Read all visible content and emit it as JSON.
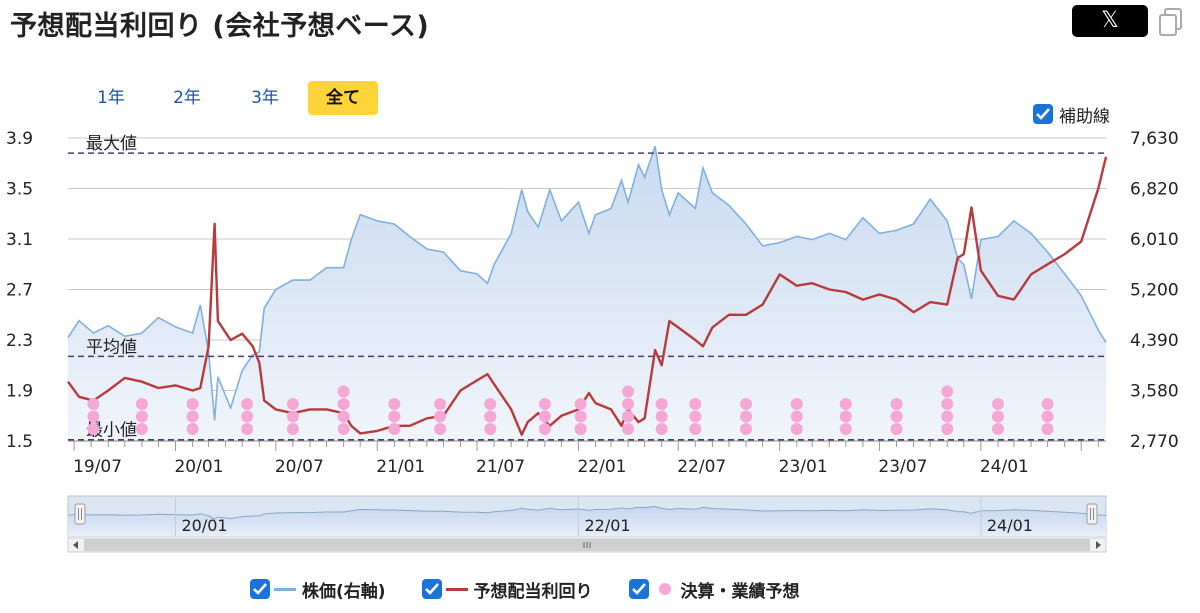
{
  "page": {
    "title": "予想配当利回り (会社予想ベース)",
    "share_x_label": "𝕏",
    "tabs": [
      {
        "label": "1年",
        "active": false
      },
      {
        "label": "2年",
        "active": false
      },
      {
        "label": "3年",
        "active": false
      },
      {
        "label": "全て",
        "active": true
      }
    ],
    "aux_lines_label": "補助線",
    "aux_lines_checked": true
  },
  "colors": {
    "stock": "#7fb0e0",
    "yield": "#b83a3a",
    "events": "#f5a8d6",
    "refline": "#4b3a78",
    "accent": "#ffd43b",
    "checkbox": "#1a73d9"
  },
  "chart_data": {
    "type": "line",
    "left_axis": {
      "ticks": [
        "3.9",
        "3.5",
        "3.1",
        "2.7",
        "2.3",
        "1.9",
        "1.5"
      ],
      "ylim": [
        1.5,
        3.9
      ]
    },
    "right_axis": {
      "ticks": [
        "7,630",
        "6,820",
        "6,010",
        "5,200",
        "4,390",
        "3,580",
        "2,770"
      ],
      "ylim": [
        2770,
        7630
      ]
    },
    "x_ticks": [
      "19/07",
      "20/01",
      "20/07",
      "21/01",
      "21/07",
      "22/01",
      "22/07",
      "23/01",
      "23/07",
      "24/01"
    ],
    "x_range": [
      "2019-06-20",
      "2024-08-15"
    ],
    "reference_lines": [
      {
        "label": "最大値",
        "value": 3.78
      },
      {
        "label": "平均値",
        "value": 2.17
      },
      {
        "label": "最小値",
        "value": 1.51
      }
    ],
    "series": [
      {
        "name": "株価(右軸)",
        "axis": "right",
        "style": "area",
        "points": [
          [
            "2019-06-20",
            4430
          ],
          [
            "2019-07-10",
            4700
          ],
          [
            "2019-08-05",
            4500
          ],
          [
            "2019-09-01",
            4620
          ],
          [
            "2019-10-01",
            4450
          ],
          [
            "2019-11-01",
            4500
          ],
          [
            "2019-12-01",
            4750
          ],
          [
            "2020-01-01",
            4600
          ],
          [
            "2020-02-01",
            4500
          ],
          [
            "2020-02-15",
            4950
          ],
          [
            "2020-03-01",
            4200
          ],
          [
            "2020-03-12",
            3100
          ],
          [
            "2020-03-18",
            3800
          ],
          [
            "2020-04-10",
            3300
          ],
          [
            "2020-05-01",
            3900
          ],
          [
            "2020-05-20",
            4150
          ],
          [
            "2020-06-01",
            4200
          ],
          [
            "2020-06-10",
            4900
          ],
          [
            "2020-07-01",
            5200
          ],
          [
            "2020-08-01",
            5350
          ],
          [
            "2020-09-01",
            5350
          ],
          [
            "2020-10-01",
            5550
          ],
          [
            "2020-11-01",
            5550
          ],
          [
            "2020-11-15",
            6000
          ],
          [
            "2020-12-01",
            6400
          ],
          [
            "2021-01-01",
            6300
          ],
          [
            "2021-02-01",
            6250
          ],
          [
            "2021-03-01",
            6050
          ],
          [
            "2021-04-01",
            5850
          ],
          [
            "2021-05-01",
            5800
          ],
          [
            "2021-06-01",
            5500
          ],
          [
            "2021-07-01",
            5450
          ],
          [
            "2021-07-20",
            5300
          ],
          [
            "2021-08-01",
            5600
          ],
          [
            "2021-09-01",
            6100
          ],
          [
            "2021-09-20",
            6800
          ],
          [
            "2021-10-01",
            6450
          ],
          [
            "2021-10-20",
            6200
          ],
          [
            "2021-11-10",
            6800
          ],
          [
            "2021-12-01",
            6300
          ],
          [
            "2022-01-01",
            6600
          ],
          [
            "2022-01-20",
            6100
          ],
          [
            "2022-02-01",
            6400
          ],
          [
            "2022-03-01",
            6500
          ],
          [
            "2022-03-20",
            6950
          ],
          [
            "2022-04-01",
            6600
          ],
          [
            "2022-04-20",
            7200
          ],
          [
            "2022-05-01",
            7000
          ],
          [
            "2022-05-20",
            7500
          ],
          [
            "2022-06-01",
            6800
          ],
          [
            "2022-06-15",
            6400
          ],
          [
            "2022-07-01",
            6750
          ],
          [
            "2022-08-01",
            6500
          ],
          [
            "2022-08-15",
            7150
          ],
          [
            "2022-09-01",
            6750
          ],
          [
            "2022-10-01",
            6550
          ],
          [
            "2022-11-01",
            6250
          ],
          [
            "2022-12-01",
            5900
          ],
          [
            "2023-01-01",
            5950
          ],
          [
            "2023-02-01",
            6050
          ],
          [
            "2023-03-01",
            6000
          ],
          [
            "2023-04-01",
            6100
          ],
          [
            "2023-05-01",
            6000
          ],
          [
            "2023-06-01",
            6350
          ],
          [
            "2023-07-01",
            6100
          ],
          [
            "2023-08-01",
            6150
          ],
          [
            "2023-09-01",
            6250
          ],
          [
            "2023-10-01",
            6650
          ],
          [
            "2023-11-01",
            6300
          ],
          [
            "2023-11-20",
            5700
          ],
          [
            "2023-12-01",
            5600
          ],
          [
            "2023-12-15",
            5050
          ],
          [
            "2024-01-01",
            6000
          ],
          [
            "2024-02-01",
            6050
          ],
          [
            "2024-03-01",
            6300
          ],
          [
            "2024-04-01",
            6100
          ],
          [
            "2024-05-01",
            5800
          ],
          [
            "2024-06-01",
            5450
          ],
          [
            "2024-07-01",
            5100
          ],
          [
            "2024-08-01",
            4550
          ],
          [
            "2024-08-15",
            4350
          ]
        ]
      },
      {
        "name": "予想配当利回り",
        "axis": "left",
        "style": "line",
        "points": [
          [
            "2019-06-20",
            1.97
          ],
          [
            "2019-07-10",
            1.85
          ],
          [
            "2019-08-05",
            1.82
          ],
          [
            "2019-09-01",
            1.9
          ],
          [
            "2019-10-01",
            2.0
          ],
          [
            "2019-11-01",
            1.97
          ],
          [
            "2019-12-01",
            1.92
          ],
          [
            "2020-01-01",
            1.94
          ],
          [
            "2020-02-01",
            1.9
          ],
          [
            "2020-02-15",
            1.92
          ],
          [
            "2020-03-01",
            2.25
          ],
          [
            "2020-03-12",
            3.22
          ],
          [
            "2020-03-18",
            2.45
          ],
          [
            "2020-04-10",
            2.3
          ],
          [
            "2020-05-01",
            2.35
          ],
          [
            "2020-05-20",
            2.25
          ],
          [
            "2020-06-01",
            2.12
          ],
          [
            "2020-06-10",
            1.82
          ],
          [
            "2020-07-01",
            1.75
          ],
          [
            "2020-08-01",
            1.72
          ],
          [
            "2020-09-01",
            1.75
          ],
          [
            "2020-10-01",
            1.75
          ],
          [
            "2020-11-01",
            1.72
          ],
          [
            "2020-11-15",
            1.62
          ],
          [
            "2020-12-01",
            1.56
          ],
          [
            "2021-01-01",
            1.58
          ],
          [
            "2021-02-01",
            1.62
          ],
          [
            "2021-03-01",
            1.62
          ],
          [
            "2021-04-01",
            1.68
          ],
          [
            "2021-05-01",
            1.7
          ],
          [
            "2021-06-01",
            1.9
          ],
          [
            "2021-07-01",
            1.98
          ],
          [
            "2021-07-20",
            2.03
          ],
          [
            "2021-08-01",
            1.95
          ],
          [
            "2021-09-01",
            1.75
          ],
          [
            "2021-09-20",
            1.55
          ],
          [
            "2021-10-01",
            1.65
          ],
          [
            "2021-10-20",
            1.72
          ],
          [
            "2021-11-10",
            1.62
          ],
          [
            "2021-12-01",
            1.7
          ],
          [
            "2022-01-01",
            1.75
          ],
          [
            "2022-01-20",
            1.88
          ],
          [
            "2022-02-01",
            1.8
          ],
          [
            "2022-03-01",
            1.75
          ],
          [
            "2022-03-20",
            1.62
          ],
          [
            "2022-04-01",
            1.75
          ],
          [
            "2022-04-20",
            1.65
          ],
          [
            "2022-05-01",
            1.68
          ],
          [
            "2022-05-20",
            2.22
          ],
          [
            "2022-06-01",
            2.1
          ],
          [
            "2022-06-15",
            2.45
          ],
          [
            "2022-07-01",
            2.4
          ],
          [
            "2022-08-01",
            2.3
          ],
          [
            "2022-08-15",
            2.25
          ],
          [
            "2022-09-01",
            2.4
          ],
          [
            "2022-10-01",
            2.5
          ],
          [
            "2022-11-01",
            2.5
          ],
          [
            "2022-12-01",
            2.58
          ],
          [
            "2023-01-01",
            2.82
          ],
          [
            "2023-02-01",
            2.73
          ],
          [
            "2023-03-01",
            2.75
          ],
          [
            "2023-04-01",
            2.7
          ],
          [
            "2023-05-01",
            2.68
          ],
          [
            "2023-06-01",
            2.62
          ],
          [
            "2023-07-01",
            2.66
          ],
          [
            "2023-08-01",
            2.62
          ],
          [
            "2023-09-01",
            2.52
          ],
          [
            "2023-10-01",
            2.6
          ],
          [
            "2023-11-01",
            2.58
          ],
          [
            "2023-11-20",
            2.95
          ],
          [
            "2023-12-01",
            2.98
          ],
          [
            "2023-12-15",
            3.35
          ],
          [
            "2024-01-01",
            2.85
          ],
          [
            "2024-02-01",
            2.65
          ],
          [
            "2024-03-01",
            2.62
          ],
          [
            "2024-04-01",
            2.82
          ],
          [
            "2024-05-01",
            2.9
          ],
          [
            "2024-06-01",
            2.98
          ],
          [
            "2024-07-01",
            3.08
          ],
          [
            "2024-08-01",
            3.5
          ],
          [
            "2024-08-15",
            3.75
          ]
        ]
      },
      {
        "name": "決算・業績予想",
        "axis": "left",
        "style": "dots",
        "events": [
          {
            "date": "2019-08-05",
            "count": 3
          },
          {
            "date": "2019-11-01",
            "count": 3
          },
          {
            "date": "2020-02-01",
            "count": 3
          },
          {
            "date": "2020-05-10",
            "count": 3
          },
          {
            "date": "2020-08-01",
            "count": 3
          },
          {
            "date": "2020-11-01",
            "count": 4
          },
          {
            "date": "2021-02-01",
            "count": 3
          },
          {
            "date": "2021-04-25",
            "count": 3
          },
          {
            "date": "2021-07-25",
            "count": 3
          },
          {
            "date": "2021-11-01",
            "count": 3
          },
          {
            "date": "2022-01-05",
            "count": 3
          },
          {
            "date": "2022-01-05",
            "count": 1
          },
          {
            "date": "2022-04-01",
            "count": 4
          },
          {
            "date": "2022-06-01",
            "count": 3
          },
          {
            "date": "2022-08-01",
            "count": 3
          },
          {
            "date": "2022-11-01",
            "count": 3
          },
          {
            "date": "2023-02-01",
            "count": 3
          },
          {
            "date": "2023-05-01",
            "count": 3
          },
          {
            "date": "2023-08-01",
            "count": 3
          },
          {
            "date": "2023-11-01",
            "count": 4
          },
          {
            "date": "2024-02-01",
            "count": 3
          },
          {
            "date": "2024-05-01",
            "count": 3
          }
        ]
      }
    ],
    "navigator": {
      "ticks": [
        "20/01",
        "22/01",
        "24/01"
      ]
    }
  },
  "legend": [
    {
      "label": "株価(右軸)",
      "checked": true,
      "kind": "line",
      "color": "#7fb0e0"
    },
    {
      "label": "予想配当利回り",
      "checked": true,
      "kind": "line",
      "color": "#b83a3a"
    },
    {
      "label": "決算・業績予想",
      "checked": true,
      "kind": "dot",
      "color": "#f5a8d6"
    }
  ]
}
